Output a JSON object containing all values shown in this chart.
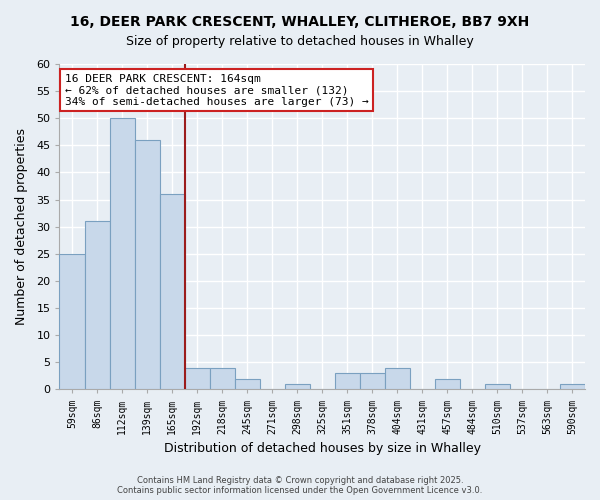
{
  "title_line1": "16, DEER PARK CRESCENT, WHALLEY, CLITHEROE, BB7 9XH",
  "title_line2": "Size of property relative to detached houses in Whalley",
  "xlabel": "Distribution of detached houses by size in Whalley",
  "ylabel": "Number of detached properties",
  "categories": [
    "59sqm",
    "86sqm",
    "112sqm",
    "139sqm",
    "165sqm",
    "192sqm",
    "218sqm",
    "245sqm",
    "271sqm",
    "298sqm",
    "325sqm",
    "351sqm",
    "378sqm",
    "404sqm",
    "431sqm",
    "457sqm",
    "484sqm",
    "510sqm",
    "537sqm",
    "563sqm",
    "590sqm"
  ],
  "values": [
    25,
    31,
    50,
    46,
    36,
    4,
    4,
    2,
    0,
    1,
    0,
    3,
    3,
    4,
    0,
    2,
    0,
    1,
    0,
    0,
    1
  ],
  "bar_color": "#c8d8ea",
  "bar_edge_color": "#7aa0c0",
  "vline_index": 4,
  "vline_color": "#9b1c1c",
  "annotation_line1": "16 DEER PARK CRESCENT: 164sqm",
  "annotation_line2": "← 62% of detached houses are smaller (132)",
  "annotation_line3": "34% of semi-detached houses are larger (73) →",
  "ylim": [
    0,
    60
  ],
  "yticks": [
    0,
    5,
    10,
    15,
    20,
    25,
    30,
    35,
    40,
    45,
    50,
    55,
    60
  ],
  "footer_line1": "Contains HM Land Registry data © Crown copyright and database right 2025.",
  "footer_line2": "Contains public sector information licensed under the Open Government Licence v3.0.",
  "bg_color": "#e8eef4",
  "grid_color": "#ffffff",
  "title_fontsize": 10,
  "subtitle_fontsize": 9
}
